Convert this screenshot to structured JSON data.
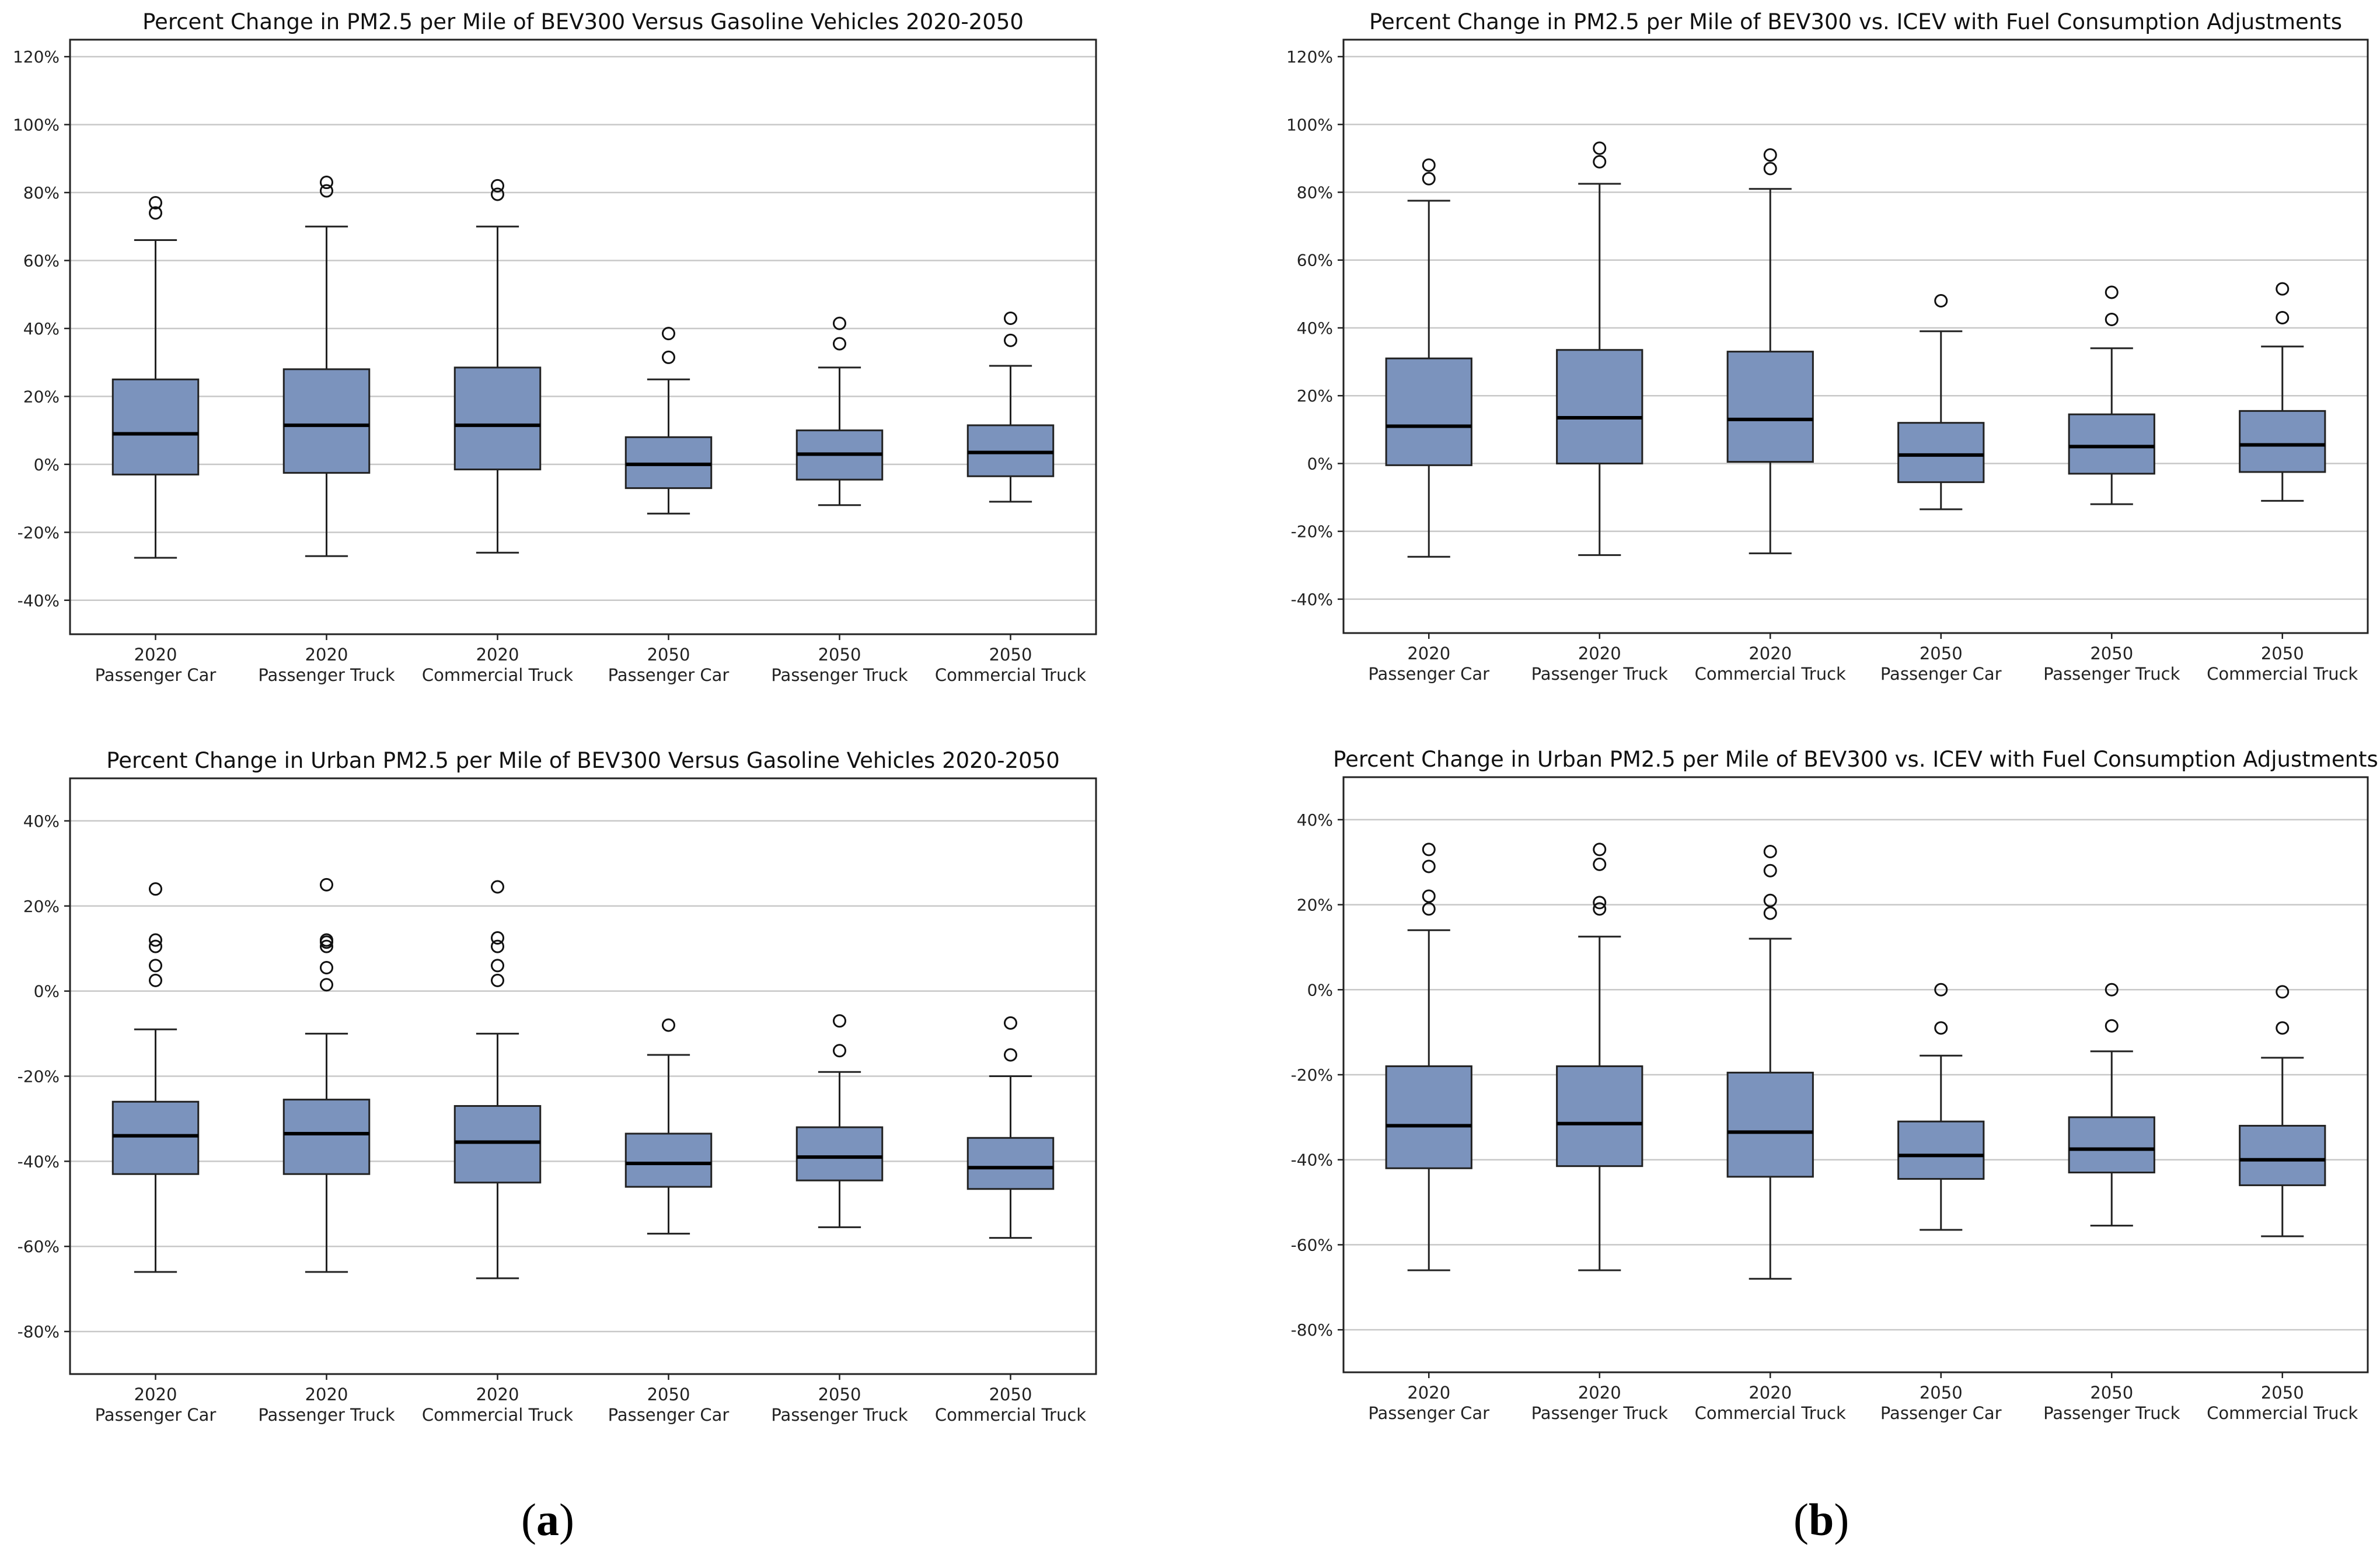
{
  "panel_labels": {
    "a": {
      "open": "(",
      "letter": "a",
      "close": ")"
    },
    "b": {
      "open": "(",
      "letter": "b",
      "close": ")"
    }
  },
  "colors": {
    "box_fill": "#7b93bd",
    "grid": "#c8c8c8",
    "axis": "#222222",
    "median": "#000000"
  },
  "chart_data": [
    {
      "type": "boxplot",
      "panel": "top-left",
      "title": "Percent Change in PM2.5 per Mile of BEV300 Versus Gasoline Vehicles 2020-2050",
      "ylim": [
        -50,
        125
      ],
      "yticks": [
        -40,
        -20,
        0,
        20,
        40,
        60,
        80,
        100,
        120
      ],
      "ytick_labels": [
        "-40%",
        "-20%",
        "0%",
        "20%",
        "40%",
        "60%",
        "80%",
        "100%",
        "120%"
      ],
      "grid": "horizontal",
      "categories": [
        {
          "year": "2020",
          "name": "Passenger Car"
        },
        {
          "year": "2020",
          "name": "Passenger Truck"
        },
        {
          "year": "2020",
          "name": "Commercial Truck"
        },
        {
          "year": "2050",
          "name": "Passenger Car"
        },
        {
          "year": "2050",
          "name": "Passenger Truck"
        },
        {
          "year": "2050",
          "name": "Commercial Truck"
        }
      ],
      "boxes": [
        {
          "whislo": -27.5,
          "q1": -3,
          "med": 9,
          "q3": 25,
          "whishi": 66,
          "fliers": [
            74,
            77
          ]
        },
        {
          "whislo": -27,
          "q1": -2.5,
          "med": 11.5,
          "q3": 28,
          "whishi": 70,
          "fliers": [
            80.5,
            83
          ]
        },
        {
          "whislo": -26,
          "q1": -1.5,
          "med": 11.5,
          "q3": 28.5,
          "whishi": 70,
          "fliers": [
            79.5,
            82
          ]
        },
        {
          "whislo": -14.5,
          "q1": -7,
          "med": 0,
          "q3": 8,
          "whishi": 25,
          "fliers": [
            31.5,
            38.5
          ]
        },
        {
          "whislo": -12,
          "q1": -4.5,
          "med": 3,
          "q3": 10,
          "whishi": 28.5,
          "fliers": [
            35.5,
            41.5
          ]
        },
        {
          "whislo": -11,
          "q1": -3.5,
          "med": 3.5,
          "q3": 11.5,
          "whishi": 29,
          "fliers": [
            36.5,
            43
          ]
        }
      ]
    },
    {
      "type": "boxplot",
      "panel": "top-right",
      "title": "Percent Change in PM2.5 per Mile of BEV300 vs. ICEV with Fuel Consumption Adjustments",
      "ylim": [
        -50,
        125
      ],
      "yticks": [
        -40,
        -20,
        0,
        20,
        40,
        60,
        80,
        100,
        120
      ],
      "ytick_labels": [
        "-40%",
        "-20%",
        "0%",
        "20%",
        "40%",
        "60%",
        "80%",
        "100%",
        "120%"
      ],
      "grid": "horizontal",
      "categories": [
        {
          "year": "2020",
          "name": "Passenger Car"
        },
        {
          "year": "2020",
          "name": "Passenger Truck"
        },
        {
          "year": "2020",
          "name": "Commercial Truck"
        },
        {
          "year": "2050",
          "name": "Passenger Car"
        },
        {
          "year": "2050",
          "name": "Passenger Truck"
        },
        {
          "year": "2050",
          "name": "Commercial Truck"
        }
      ],
      "boxes": [
        {
          "whislo": -27.5,
          "q1": -0.5,
          "med": 11,
          "q3": 31,
          "whishi": 77.5,
          "fliers": [
            84,
            88
          ]
        },
        {
          "whislo": -27,
          "q1": 0,
          "med": 13.5,
          "q3": 33.5,
          "whishi": 82.5,
          "fliers": [
            89,
            93
          ]
        },
        {
          "whislo": -26.5,
          "q1": 0.5,
          "med": 13,
          "q3": 33,
          "whishi": 81,
          "fliers": [
            87,
            91
          ]
        },
        {
          "whislo": -13.5,
          "q1": -5.5,
          "med": 2.5,
          "q3": 12,
          "whishi": 39,
          "fliers": [
            48
          ]
        },
        {
          "whislo": -12,
          "q1": -3,
          "med": 5,
          "q3": 14.5,
          "whishi": 34,
          "fliers": [
            42.5,
            50.5
          ]
        },
        {
          "whislo": -11,
          "q1": -2.5,
          "med": 5.5,
          "q3": 15.5,
          "whishi": 34.5,
          "fliers": [
            43,
            51.5
          ]
        }
      ]
    },
    {
      "type": "boxplot",
      "panel": "bottom-left",
      "title": "Percent Change in Urban PM2.5 per Mile of BEV300 Versus Gasoline Vehicles 2020-2050",
      "ylim": [
        -90,
        50
      ],
      "yticks": [
        -80,
        -60,
        -40,
        -20,
        0,
        20,
        40
      ],
      "ytick_labels": [
        "-80%",
        "-60%",
        "-40%",
        "-20%",
        "0%",
        "20%",
        "40%"
      ],
      "grid": "horizontal",
      "categories": [
        {
          "year": "2020",
          "name": "Passenger Car"
        },
        {
          "year": "2020",
          "name": "Passenger Truck"
        },
        {
          "year": "2020",
          "name": "Commercial Truck"
        },
        {
          "year": "2050",
          "name": "Passenger Car"
        },
        {
          "year": "2050",
          "name": "Passenger Truck"
        },
        {
          "year": "2050",
          "name": "Commercial Truck"
        }
      ],
      "boxes": [
        {
          "whislo": -66,
          "q1": -43,
          "med": -34,
          "q3": -26,
          "whishi": -9,
          "fliers": [
            2.5,
            6,
            10.5,
            12,
            24
          ]
        },
        {
          "whislo": -66,
          "q1": -43,
          "med": -33.5,
          "q3": -25.5,
          "whishi": -10,
          "fliers": [
            1.5,
            5.5,
            10.5,
            11.5,
            12,
            25
          ]
        },
        {
          "whislo": -67.5,
          "q1": -45,
          "med": -35.5,
          "q3": -27,
          "whishi": -10,
          "fliers": [
            2.5,
            6,
            10.5,
            12.5,
            24.5
          ]
        },
        {
          "whislo": -57,
          "q1": -46,
          "med": -40.5,
          "q3": -33.5,
          "whishi": -15,
          "fliers": [
            -8
          ]
        },
        {
          "whislo": -55.5,
          "q1": -44.5,
          "med": -39,
          "q3": -32,
          "whishi": -19,
          "fliers": [
            -14,
            -7
          ]
        },
        {
          "whislo": -58,
          "q1": -46.5,
          "med": -41.5,
          "q3": -34.5,
          "whishi": -20,
          "fliers": [
            -15,
            -7.5
          ]
        }
      ]
    },
    {
      "type": "boxplot",
      "panel": "bottom-right",
      "title": "Percent Change in Urban PM2.5 per Mile of BEV300 vs. ICEV with Fuel Consumption Adjustments",
      "ylim": [
        -90,
        50
      ],
      "yticks": [
        -80,
        -60,
        -40,
        -20,
        0,
        20,
        40
      ],
      "ytick_labels": [
        "-80%",
        "-60%",
        "-40%",
        "-20%",
        "0%",
        "20%",
        "40%"
      ],
      "grid": "horizontal",
      "categories": [
        {
          "year": "2020",
          "name": "Passenger Car"
        },
        {
          "year": "2020",
          "name": "Passenger Truck"
        },
        {
          "year": "2020",
          "name": "Commercial Truck"
        },
        {
          "year": "2050",
          "name": "Passenger Car"
        },
        {
          "year": "2050",
          "name": "Passenger Truck"
        },
        {
          "year": "2050",
          "name": "Commercial Truck"
        }
      ],
      "boxes": [
        {
          "whislo": -66,
          "q1": -42,
          "med": -32,
          "q3": -18,
          "whishi": 14,
          "fliers": [
            19,
            22,
            29,
            33
          ]
        },
        {
          "whislo": -66,
          "q1": -41.5,
          "med": -31.5,
          "q3": -18,
          "whishi": 12.5,
          "fliers": [
            19,
            20.5,
            29.5,
            33
          ]
        },
        {
          "whislo": -68,
          "q1": -44,
          "med": -33.5,
          "q3": -19.5,
          "whishi": 12,
          "fliers": [
            18,
            21,
            28,
            32.5
          ]
        },
        {
          "whislo": -56.5,
          "q1": -44.5,
          "med": -39,
          "q3": -31,
          "whishi": -15.5,
          "fliers": [
            -9,
            0
          ]
        },
        {
          "whislo": -55.5,
          "q1": -43,
          "med": -37.5,
          "q3": -30,
          "whishi": -14.5,
          "fliers": [
            -8.5,
            0
          ]
        },
        {
          "whislo": -58,
          "q1": -46,
          "med": -40,
          "q3": -32,
          "whishi": -16,
          "fliers": [
            -9,
            -0.5
          ]
        }
      ]
    }
  ]
}
